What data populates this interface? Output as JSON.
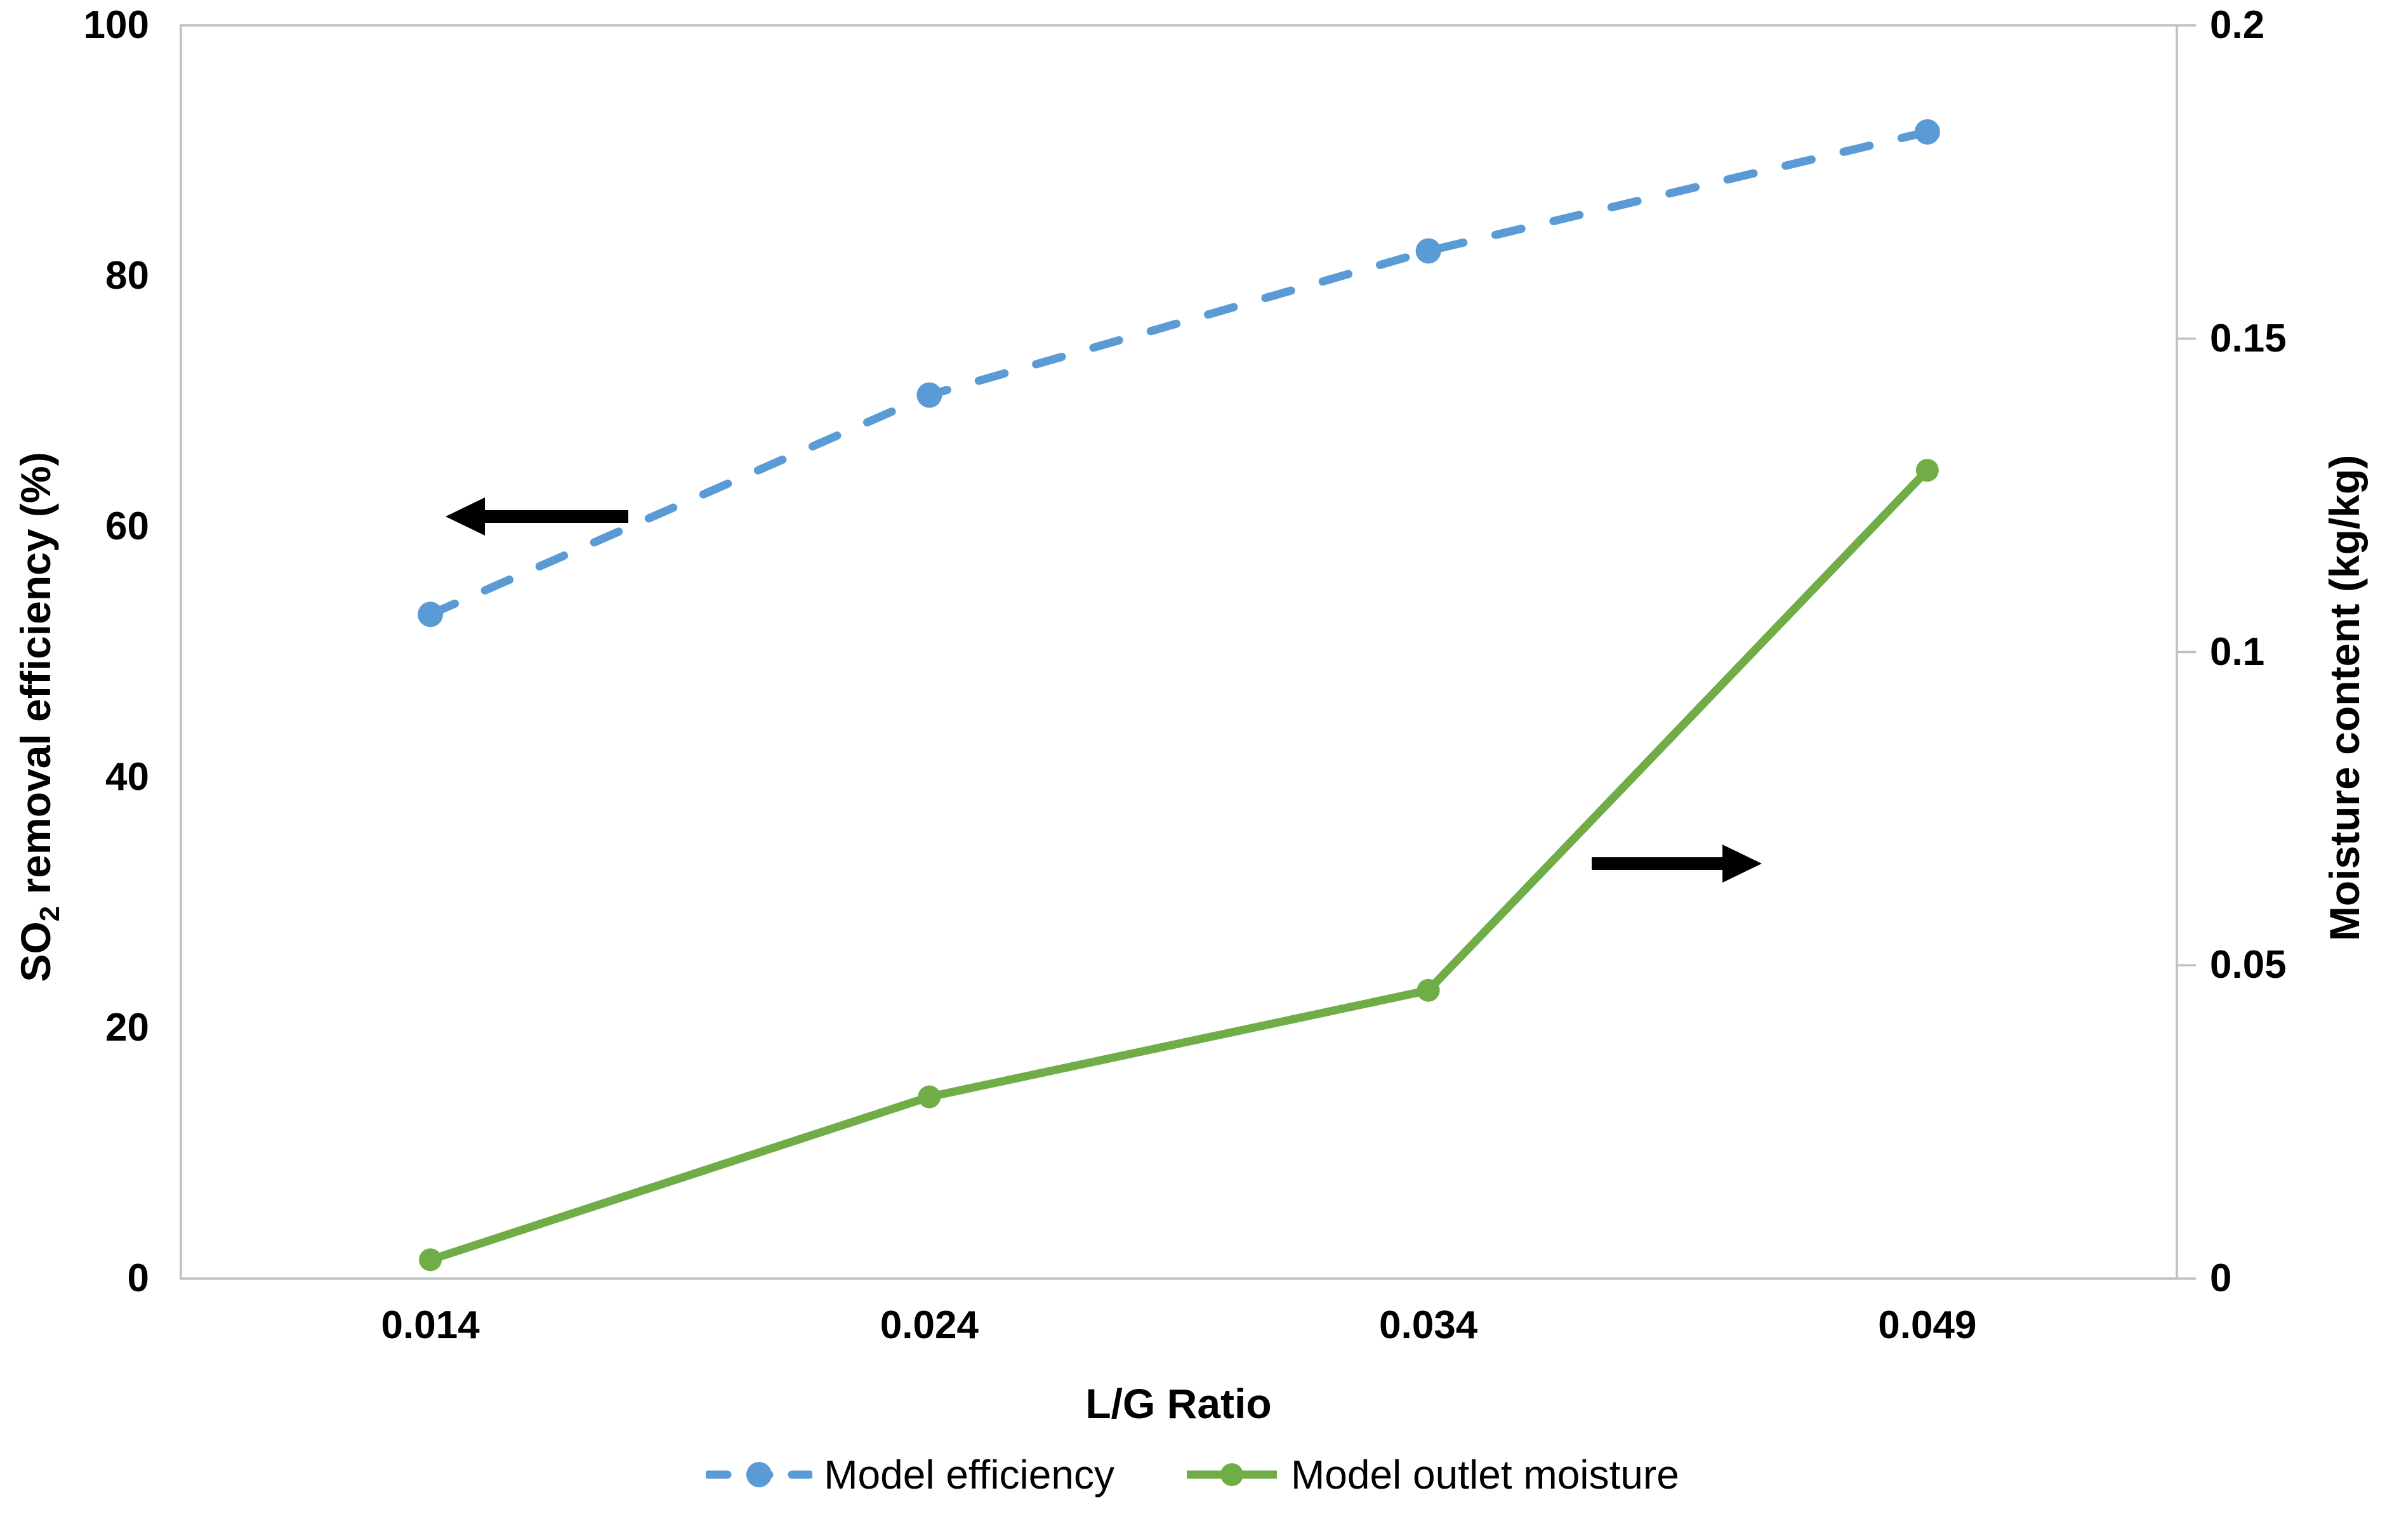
{
  "chart_data": {
    "type": "line",
    "title": "",
    "categories": [
      "0.014",
      "0.024",
      "0.034",
      "0.049"
    ],
    "series": [
      {
        "name": "Model efficiency",
        "axis": "left",
        "color": "#5B9BD5",
        "line_style": "dashed",
        "marker": "circle",
        "values": [
          53,
          70.5,
          82,
          91.5
        ]
      },
      {
        "name": "Model outlet moisture",
        "axis": "right",
        "color": "#70AD47",
        "line_style": "solid",
        "marker": "circle",
        "values": [
          0.003,
          0.029,
          0.046,
          0.129
        ]
      }
    ],
    "axes": {
      "x": {
        "title": "L/G Ratio",
        "tick_labels": [
          "0.014",
          "0.024",
          "0.034",
          "0.049"
        ]
      },
      "left": {
        "title": "SO2 removal efficiency (%)",
        "title_parts": {
          "main": "SO",
          "sub": "2",
          "rest": " removal efficiency (%)"
        },
        "range": [
          0,
          100
        ],
        "ticks": [
          0,
          20,
          40,
          60,
          80,
          100
        ],
        "tick_labels": [
          "0",
          "20",
          "40",
          "60",
          "80",
          "100"
        ]
      },
      "right": {
        "title": "Moisture content (kg/kg)",
        "range": [
          0,
          0.2
        ],
        "ticks": [
          0,
          0.05,
          0.1,
          0.15,
          0.2
        ],
        "tick_labels": [
          "0",
          "0.05",
          "0.1",
          "0.15",
          "0.2"
        ]
      }
    },
    "legend": {
      "position": "bottom",
      "entries": [
        "Model efficiency",
        "Model outlet moisture"
      ]
    },
    "annotations": [
      {
        "type": "arrow",
        "direction": "left",
        "x": 990,
        "y": 814,
        "length": 288
      },
      {
        "type": "arrow",
        "direction": "right",
        "x": 2508,
        "y": 1361,
        "length": 268
      }
    ],
    "grid": false,
    "colors": {
      "axis_line": "#BFBFBF",
      "arrow": "#000000",
      "text": "#000000"
    }
  }
}
